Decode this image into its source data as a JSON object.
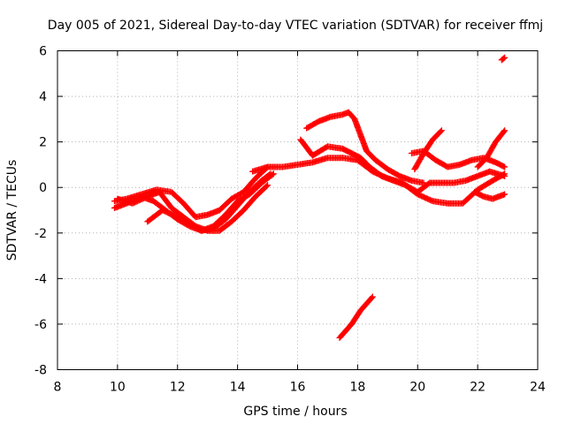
{
  "chart_data": {
    "type": "scatter",
    "title": "Day 005 of 2021, Sidereal Day-to-day VTEC variation (SDTVAR) for receiver ffmj",
    "xlabel": "GPS time / hours",
    "ylabel": "SDTVAR / TECUs",
    "xlim": [
      8,
      24
    ],
    "ylim": [
      -8,
      6
    ],
    "xticks": [
      8,
      10,
      12,
      14,
      16,
      18,
      20,
      22,
      24
    ],
    "xtick_labels": [
      "8",
      "10",
      "12",
      "14",
      "16",
      "18",
      "20",
      "22",
      "24"
    ],
    "yticks": [
      -8,
      -6,
      -4,
      -2,
      0,
      2,
      4,
      6
    ],
    "ytick_labels": [
      "-8",
      "-6",
      "-4",
      "-2",
      "0",
      "2",
      "4",
      "6"
    ],
    "grid": true,
    "marker": "plus",
    "marker_color": "#ff0000",
    "tracks": [
      {
        "name": "track-a",
        "x": [
          9.9,
          10.3,
          10.8,
          11.3,
          11.8,
          12.2,
          12.6,
          13.0,
          13.4,
          13.8,
          14.2,
          14.6,
          15.0
        ],
        "y": [
          -0.6,
          -0.5,
          -0.3,
          -0.1,
          -0.2,
          -0.7,
          -1.3,
          -1.2,
          -1.0,
          -0.5,
          -0.2,
          0.4,
          0.9
        ]
      },
      {
        "name": "track-b",
        "x": [
          9.9,
          10.3,
          10.8,
          11.2,
          11.6,
          12.0,
          12.4,
          12.8,
          13.2,
          13.6,
          14.0,
          14.4,
          14.8,
          15.1
        ],
        "y": [
          -0.9,
          -0.7,
          -0.4,
          -0.6,
          -1.0,
          -1.4,
          -1.7,
          -1.9,
          -1.8,
          -1.4,
          -0.8,
          -0.2,
          0.3,
          0.6
        ]
      },
      {
        "name": "track-c",
        "x": [
          10.0,
          10.5,
          11.0,
          11.4,
          11.8,
          12.2,
          12.6,
          13.0,
          13.4,
          13.8,
          14.2,
          14.6,
          15.0
        ],
        "y": [
          -0.5,
          -0.7,
          -0.4,
          -0.2,
          -0.9,
          -1.3,
          -1.7,
          -1.9,
          -1.9,
          -1.5,
          -1.0,
          -0.4,
          0.1
        ]
      },
      {
        "name": "track-d",
        "x": [
          11.0,
          11.5,
          12.0,
          12.4,
          12.8,
          13.2,
          13.6,
          14.0,
          14.4,
          14.8,
          15.2
        ],
        "y": [
          -1.5,
          -1.0,
          -1.3,
          -1.6,
          -1.9,
          -1.7,
          -1.2,
          -0.6,
          -0.3,
          0.2,
          0.6
        ]
      },
      {
        "name": "track-e",
        "x": [
          14.5,
          15.0,
          15.5,
          16.0,
          16.5,
          17.0,
          17.5,
          18.0,
          18.5,
          19.0,
          19.5,
          20.0,
          20.5,
          21.0,
          21.5,
          22.0,
          22.5,
          22.9
        ],
        "y": [
          0.7,
          0.9,
          0.9,
          1.0,
          1.1,
          1.3,
          1.3,
          1.2,
          0.7,
          0.4,
          0.2,
          -0.3,
          -0.6,
          -0.7,
          -0.7,
          -0.1,
          0.3,
          0.6
        ]
      },
      {
        "name": "track-f",
        "x": [
          16.1,
          16.5,
          17.0,
          17.5,
          17.8,
          18.1,
          18.4,
          18.8,
          19.2,
          19.6,
          20.0,
          20.4,
          20.8,
          21.2,
          21.6,
          22.0,
          22.4,
          22.9
        ],
        "y": [
          2.1,
          1.4,
          1.8,
          1.7,
          1.5,
          1.3,
          0.9,
          0.5,
          0.3,
          0.1,
          -0.2,
          0.2,
          0.2,
          0.2,
          0.3,
          0.5,
          0.7,
          0.5
        ]
      },
      {
        "name": "track-g",
        "x": [
          16.3,
          16.7,
          17.1,
          17.5,
          17.7,
          17.9,
          18.1,
          18.3,
          18.6,
          19.0,
          19.4,
          19.8,
          20.2
        ],
        "y": [
          2.6,
          2.9,
          3.1,
          3.2,
          3.3,
          3.0,
          2.3,
          1.6,
          1.2,
          0.8,
          0.5,
          0.3,
          0.2
        ]
      },
      {
        "name": "track-h",
        "x": [
          19.8,
          20.2,
          20.6,
          21.0,
          21.4,
          21.8,
          22.2,
          22.6,
          22.9
        ],
        "y": [
          1.5,
          1.6,
          1.2,
          0.9,
          1.0,
          1.2,
          1.3,
          1.1,
          0.9
        ]
      },
      {
        "name": "track-i",
        "x": [
          19.9,
          20.2,
          20.5,
          20.8
        ],
        "y": [
          0.8,
          1.5,
          2.1,
          2.5
        ]
      },
      {
        "name": "track-j",
        "x": [
          22.0,
          22.3,
          22.6,
          22.9
        ],
        "y": [
          0.9,
          1.3,
          2.0,
          2.5
        ]
      },
      {
        "name": "track-k",
        "x": [
          21.9,
          22.2,
          22.5,
          22.9
        ],
        "y": [
          -0.2,
          -0.4,
          -0.5,
          -0.3
        ]
      },
      {
        "name": "track-l",
        "x": [
          17.4,
          17.8,
          18.1,
          18.5
        ],
        "y": [
          -6.6,
          -6.0,
          -5.4,
          -4.8
        ]
      },
      {
        "name": "track-m",
        "x": [
          22.8,
          22.9
        ],
        "y": [
          5.6,
          5.7
        ]
      }
    ]
  }
}
